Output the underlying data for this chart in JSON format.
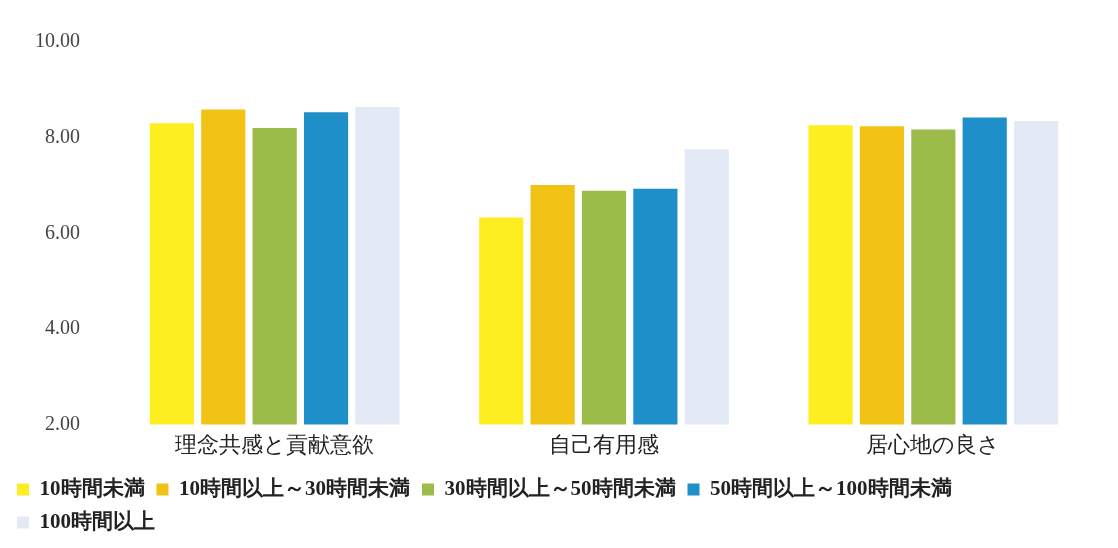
{
  "chart_data": {
    "type": "bar",
    "categories": [
      "理念共感と貢献意欲",
      "自己有用感",
      "居心地の良さ"
    ],
    "series": [
      {
        "name": "10時間未満",
        "color": "#fcee21",
        "values": [
          8.3,
          6.33,
          8.26
        ]
      },
      {
        "name": "10時間以上～30時間未満",
        "color": "#f2c314",
        "values": [
          8.59,
          7.01,
          8.24
        ]
      },
      {
        "name": "30時間以上～50時間未満",
        "color": "#9cbc4a",
        "values": [
          8.2,
          6.89,
          8.17
        ]
      },
      {
        "name": "50時間以上～100時間未満",
        "color": "#1e8fc8",
        "values": [
          8.53,
          6.93,
          8.42
        ]
      },
      {
        "name": "100時間以上",
        "color": "#e3e9f5",
        "values": [
          8.64,
          7.76,
          8.35
        ]
      }
    ],
    "ylim": [
      2,
      10
    ],
    "yticks": [
      {
        "value": 2,
        "label": "2.00"
      },
      {
        "value": 4,
        "label": "4.00"
      },
      {
        "value": 6,
        "label": "6.00"
      },
      {
        "value": 8,
        "label": "8.00"
      },
      {
        "value": 10,
        "label": "10.00"
      }
    ],
    "grid": false,
    "legend": "bottom"
  }
}
